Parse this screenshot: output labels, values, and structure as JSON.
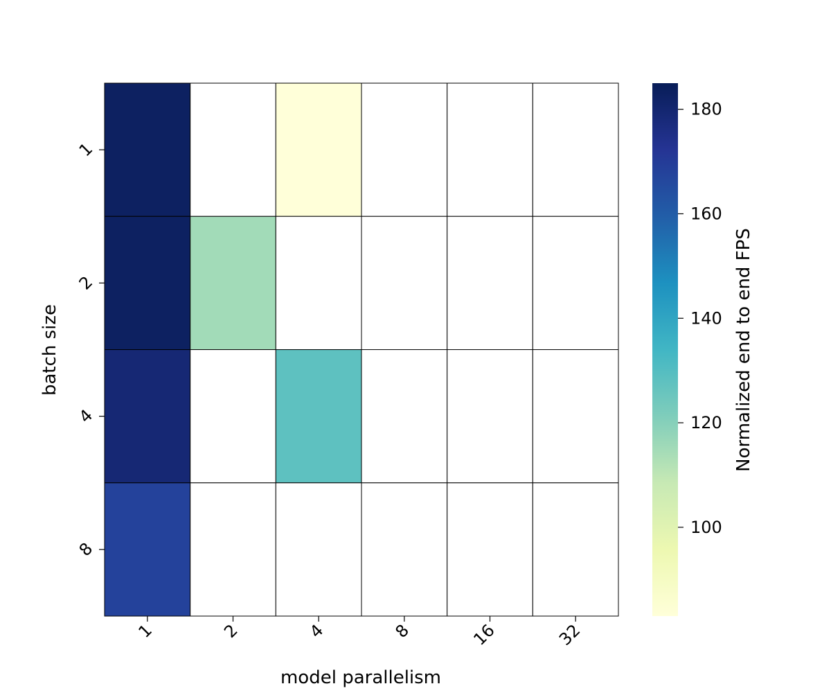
{
  "chart_data": {
    "type": "heatmap",
    "title": "",
    "xlabel": "model parallelism",
    "ylabel": "batch size",
    "x_categories": [
      "1",
      "2",
      "4",
      "8",
      "16",
      "32"
    ],
    "y_categories": [
      "1",
      "2",
      "4",
      "8"
    ],
    "values": [
      [
        183,
        null,
        83,
        null,
        null,
        null
      ],
      [
        183,
        115,
        null,
        null,
        null,
        null
      ],
      [
        179,
        null,
        128,
        null,
        null,
        null
      ],
      [
        168,
        null,
        null,
        null,
        null,
        null
      ]
    ],
    "colorbar": {
      "label": "Normalized end to end FPS",
      "range": [
        83,
        185
      ],
      "ticks": [
        "100",
        "120",
        "140",
        "160",
        "180"
      ],
      "tick_values": [
        100,
        120,
        140,
        160,
        180
      ],
      "colormap": "YlGnBu"
    },
    "missing_color": "#ffffff",
    "grid_line_color": "#000000"
  }
}
